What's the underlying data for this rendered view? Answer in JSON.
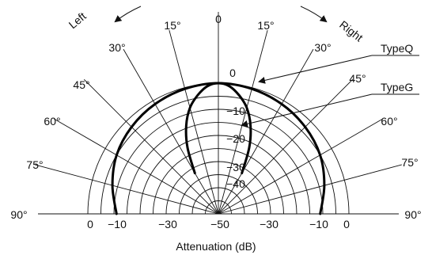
{
  "chart_data": {
    "type": "polar",
    "xlabel": "Attenuation (dB)",
    "direction_labels": {
      "left": "Left",
      "right": "Right"
    },
    "angle_range": [
      -90,
      90
    ],
    "angle_ticks": [
      -90,
      -75,
      -60,
      -45,
      -30,
      -15,
      0,
      15,
      30,
      45,
      60,
      75,
      90
    ],
    "angle_tick_labels": [
      "90°",
      "75°",
      "60°",
      "45°",
      "30°",
      "15°",
      "0",
      "15°",
      "30°",
      "45°",
      "60°",
      "75°",
      "90°"
    ],
    "radial_range_db": [
      -50,
      0
    ],
    "radial_gridlines_db": [
      0,
      -5,
      -10,
      -15,
      -20,
      -25,
      -30,
      -35,
      -40,
      -45
    ],
    "radial_axis_labels": [
      "0",
      "−10",
      "−20",
      "−30",
      "−40"
    ],
    "bottom_axis_labels": [
      "0",
      "−10",
      "−30",
      "−50",
      "−30",
      "−10",
      "0"
    ],
    "series": [
      {
        "name": "TypeQ",
        "angles": [
          -90,
          -75,
          -60,
          -45,
          -30,
          -15,
          0,
          15,
          30,
          45,
          60,
          75,
          90
        ],
        "values": [
          -11,
          -8,
          -5,
          -3,
          -1.5,
          -0.5,
          0,
          -0.5,
          -1.5,
          -3,
          -5,
          -8,
          -11
        ]
      },
      {
        "name": "TypeG",
        "angles": [
          -30,
          -25,
          -20,
          -15,
          -10,
          -5,
          0,
          5,
          10,
          15,
          20,
          25,
          30
        ],
        "values": [
          -32,
          -22,
          -14,
          -8,
          -4,
          -1,
          0,
          -1,
          -4,
          -8,
          -14,
          -22,
          -32
        ]
      }
    ]
  }
}
